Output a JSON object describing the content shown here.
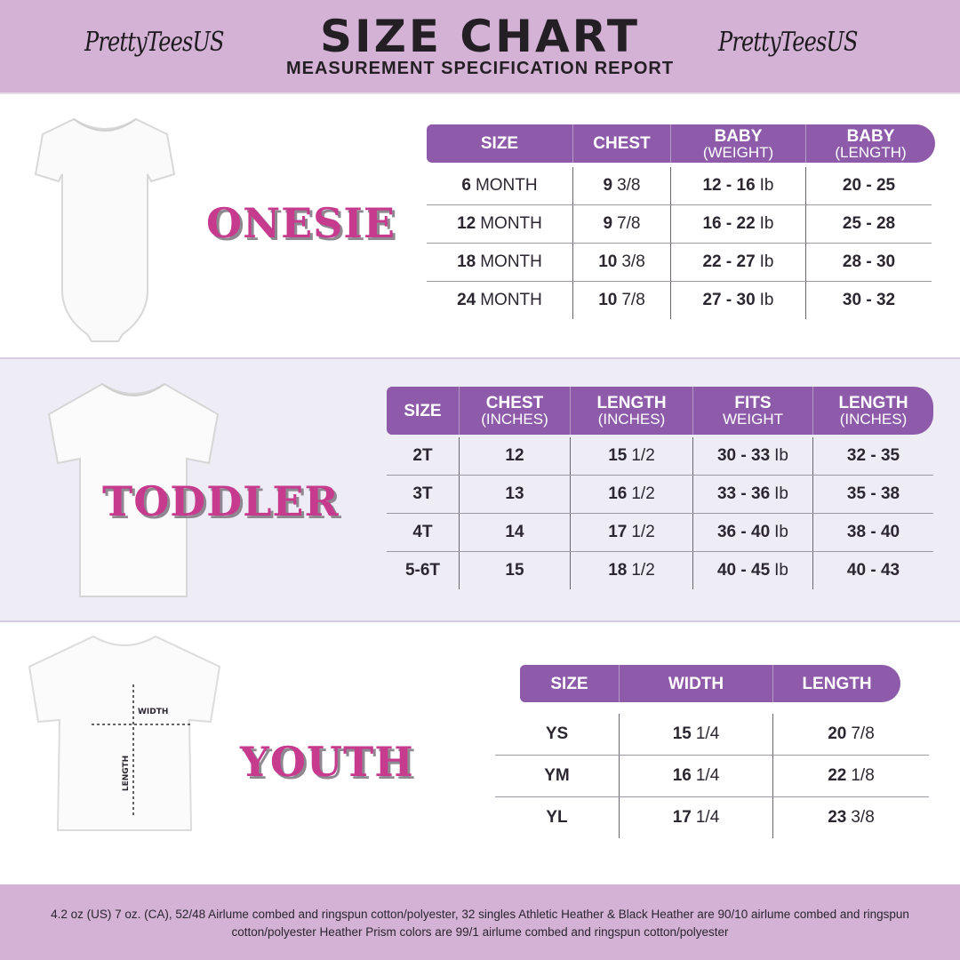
{
  "header": {
    "brand_left": "PrettyTeesUS",
    "brand_right": "PrettyTeesUS",
    "title": "SIZE CHART",
    "subtitle": "MEASUREMENT SPECIFICATION REPORT"
  },
  "colors": {
    "header_bg": "#d4b2d5",
    "table_header": "#8d5ba9",
    "category_label": "#c73b8f",
    "toddler_bg": "#eeedf6"
  },
  "onesie": {
    "label": "ONESIE",
    "image": "white-onesie",
    "columns": [
      {
        "title": "SIZE",
        "sub": ""
      },
      {
        "title": "CHEST",
        "sub": ""
      },
      {
        "title": "BABY",
        "sub": "(WEIGHT)"
      },
      {
        "title": "BABY",
        "sub": "(LENGTH)"
      }
    ],
    "rows": [
      [
        "6 MONTH",
        "9 3/8",
        "12 - 16 Ib",
        "20 - 25"
      ],
      [
        "12 MONTH",
        "9 7/8",
        "16 - 22 Ib",
        "25 - 28"
      ],
      [
        "18  MONTH",
        "10 3/8",
        "22 - 27 Ib",
        "28 - 30"
      ],
      [
        "24 MONTH",
        "10 7/8",
        "27 - 30 Ib",
        "30 - 32"
      ]
    ]
  },
  "toddler": {
    "label": "TODDLER",
    "image": "white-toddler-tshirt",
    "columns": [
      {
        "title": "SIZE",
        "sub": ""
      },
      {
        "title": "CHEST",
        "sub": "(INCHES)"
      },
      {
        "title": "LENGTH",
        "sub": "(INCHES)"
      },
      {
        "title": "FITS",
        "sub": "WEIGHT"
      },
      {
        "title": "LENGTH",
        "sub": "(INCHES)"
      }
    ],
    "rows": [
      [
        "2T",
        "12",
        "15 1/2",
        "30 - 33  Ib",
        "32 - 35"
      ],
      [
        "3T",
        "13",
        "16 1/2",
        "33 - 36 Ib",
        "35 - 38"
      ],
      [
        "4T",
        "14",
        "17 1/2",
        "36 - 40 Ib",
        "38 - 40"
      ],
      [
        "5-6T",
        "15",
        "18 1/2",
        "40 - 45 Ib",
        "40 - 43"
      ]
    ]
  },
  "youth": {
    "label": "YOUTH",
    "image": "white-youth-tshirt",
    "width_label": "WIDTH",
    "length_label": "LENGTH",
    "columns": [
      {
        "title": "SIZE",
        "sub": ""
      },
      {
        "title": "WIDTH",
        "sub": ""
      },
      {
        "title": "LENGTH",
        "sub": ""
      }
    ],
    "rows": [
      [
        "YS",
        "15 1/4",
        "20 7/8"
      ],
      [
        "YM",
        "16 1/4",
        "22 1/8"
      ],
      [
        "YL",
        "17 1/4",
        "23 3/8"
      ]
    ]
  },
  "footer": {
    "text": "4.2 oz (US) 7 oz. (CA), 52/48 Airlume combed and ringspun cotton/polyester, 32 singles Athletic Heather & Black Heather are 90/10 airlume combed and ringspun cotton/polyester Heather Prism colors are 99/1 airlume combed and ringspun cotton/polyester"
  }
}
